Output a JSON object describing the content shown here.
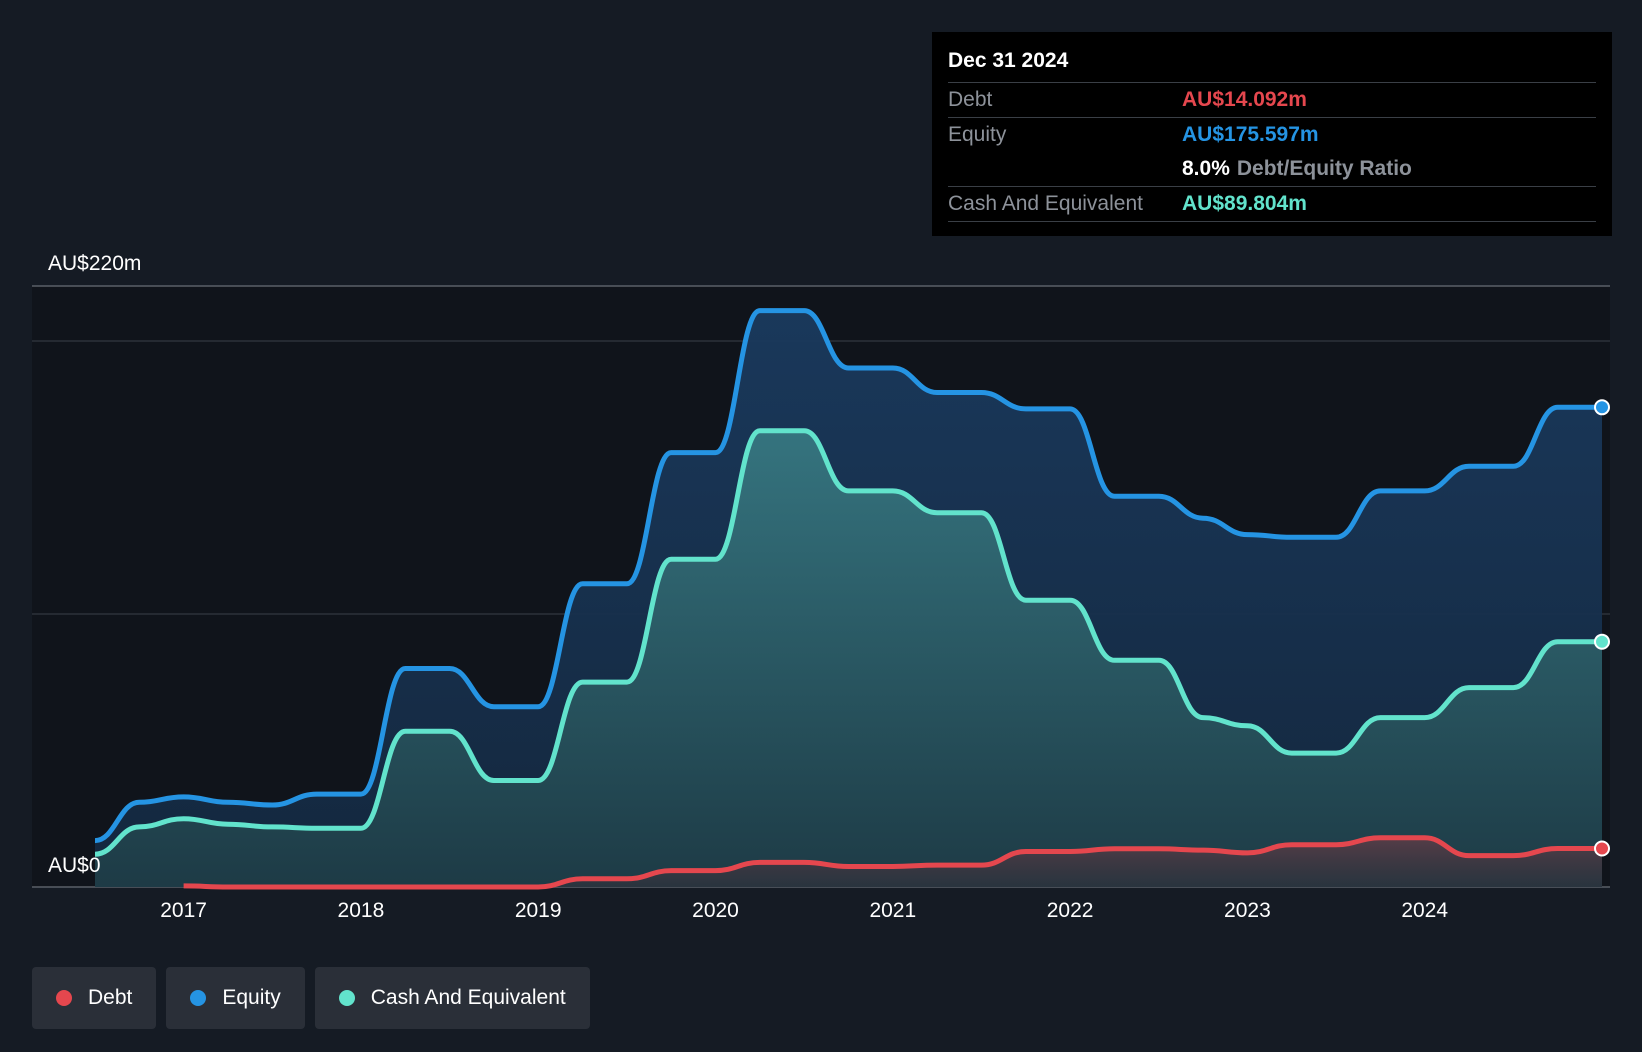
{
  "tooltip": {
    "date": "Dec 31 2024",
    "debt_label": "Debt",
    "debt_value": "AU$14.092m",
    "equity_label": "Equity",
    "equity_value": "AU$175.597m",
    "ratio_value": "8.0%",
    "ratio_label": "Debt/Equity Ratio",
    "cash_label": "Cash And Equivalent",
    "cash_value": "AU$89.804m"
  },
  "legend": [
    {
      "label": "Debt",
      "color": "#e5474e"
    },
    {
      "label": "Equity",
      "color": "#2594e3"
    },
    {
      "label": "Cash And Equivalent",
      "color": "#62e3cc"
    }
  ],
  "chart_data": {
    "type": "area",
    "y_top_label": "AU$220m",
    "y_bottom_label": "AU$0",
    "x_ticks": [
      "2017",
      "2018",
      "2019",
      "2020",
      "2021",
      "2022",
      "2023",
      "2024"
    ],
    "xlim": [
      2016.5,
      2025.0
    ],
    "ylim": [
      0,
      220
    ],
    "grid": true,
    "series": [
      {
        "name": "Equity",
        "color": "#2594e3",
        "points": [
          [
            2016.5,
            17
          ],
          [
            2016.75,
            31
          ],
          [
            2017.0,
            33
          ],
          [
            2017.25,
            31
          ],
          [
            2017.5,
            30
          ],
          [
            2017.75,
            34
          ],
          [
            2018.0,
            34
          ],
          [
            2018.25,
            80
          ],
          [
            2018.5,
            80
          ],
          [
            2018.75,
            66
          ],
          [
            2019.0,
            66
          ],
          [
            2019.25,
            111
          ],
          [
            2019.5,
            111
          ],
          [
            2019.75,
            159
          ],
          [
            2020.0,
            159
          ],
          [
            2020.25,
            211
          ],
          [
            2020.5,
            211
          ],
          [
            2020.75,
            190
          ],
          [
            2021.0,
            190
          ],
          [
            2021.25,
            181
          ],
          [
            2021.5,
            181
          ],
          [
            2021.75,
            175
          ],
          [
            2022.0,
            175
          ],
          [
            2022.25,
            143
          ],
          [
            2022.5,
            143
          ],
          [
            2022.75,
            135
          ],
          [
            2023.0,
            129
          ],
          [
            2023.25,
            128
          ],
          [
            2023.5,
            128
          ],
          [
            2023.75,
            145
          ],
          [
            2024.0,
            145
          ],
          [
            2024.25,
            154
          ],
          [
            2024.5,
            154
          ],
          [
            2024.75,
            175.6
          ],
          [
            2025.0,
            175.6
          ]
        ]
      },
      {
        "name": "Cash And Equivalent",
        "color": "#62e3cc",
        "points": [
          [
            2016.5,
            12
          ],
          [
            2016.75,
            22
          ],
          [
            2017.0,
            25
          ],
          [
            2017.25,
            23
          ],
          [
            2017.5,
            22
          ],
          [
            2017.75,
            21.5
          ],
          [
            2018.0,
            21.5
          ],
          [
            2018.25,
            57
          ],
          [
            2018.5,
            57
          ],
          [
            2018.75,
            39
          ],
          [
            2019.0,
            39
          ],
          [
            2019.25,
            75
          ],
          [
            2019.5,
            75
          ],
          [
            2019.75,
            120
          ],
          [
            2020.0,
            120
          ],
          [
            2020.25,
            167
          ],
          [
            2020.5,
            167
          ],
          [
            2020.75,
            145
          ],
          [
            2021.0,
            145
          ],
          [
            2021.25,
            137
          ],
          [
            2021.5,
            137
          ],
          [
            2021.75,
            105
          ],
          [
            2022.0,
            105
          ],
          [
            2022.25,
            83
          ],
          [
            2022.5,
            83
          ],
          [
            2022.75,
            62
          ],
          [
            2023.0,
            59
          ],
          [
            2023.25,
            49
          ],
          [
            2023.5,
            49
          ],
          [
            2023.75,
            62
          ],
          [
            2024.0,
            62
          ],
          [
            2024.25,
            73
          ],
          [
            2024.5,
            73
          ],
          [
            2024.75,
            89.8
          ],
          [
            2025.0,
            89.8
          ]
        ]
      },
      {
        "name": "Debt",
        "color": "#e5474e",
        "points": [
          [
            2017.0,
            0.4
          ],
          [
            2017.25,
            0
          ],
          [
            2017.5,
            0
          ],
          [
            2017.75,
            0
          ],
          [
            2018.0,
            0
          ],
          [
            2018.25,
            0
          ],
          [
            2018.5,
            0
          ],
          [
            2018.75,
            0
          ],
          [
            2019.0,
            0
          ],
          [
            2019.25,
            3
          ],
          [
            2019.5,
            3
          ],
          [
            2019.75,
            6
          ],
          [
            2020.0,
            6
          ],
          [
            2020.25,
            9
          ],
          [
            2020.5,
            9
          ],
          [
            2020.75,
            7.5
          ],
          [
            2021.0,
            7.5
          ],
          [
            2021.25,
            8
          ],
          [
            2021.5,
            8
          ],
          [
            2021.75,
            13
          ],
          [
            2022.0,
            13
          ],
          [
            2022.25,
            14
          ],
          [
            2022.5,
            14
          ],
          [
            2022.75,
            13.5
          ],
          [
            2023.0,
            12.5
          ],
          [
            2023.25,
            15.5
          ],
          [
            2023.5,
            15.5
          ],
          [
            2023.75,
            18
          ],
          [
            2024.0,
            18
          ],
          [
            2024.25,
            11.5
          ],
          [
            2024.5,
            11.5
          ],
          [
            2024.75,
            14.1
          ],
          [
            2025.0,
            14.1
          ]
        ]
      }
    ]
  }
}
